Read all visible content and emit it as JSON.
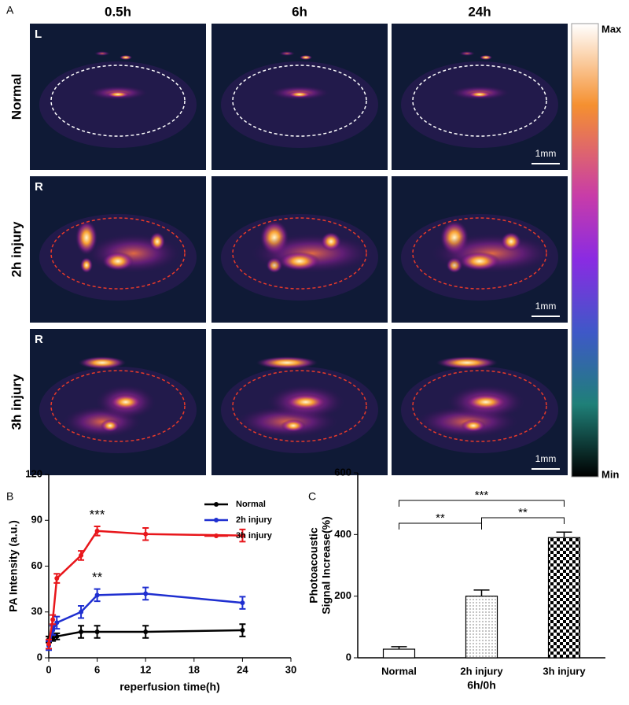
{
  "figure_a": {
    "panel_label": "A",
    "columns": [
      "0.5h",
      "6h",
      "24h"
    ],
    "rows": [
      {
        "label": "Normal",
        "side": "L"
      },
      {
        "label": "2h injury",
        "side": "R"
      },
      {
        "label": "3h injury",
        "side": "R"
      }
    ],
    "scale_bar": "1mm",
    "colorbar": {
      "max": "Max",
      "min": "Min"
    }
  },
  "chart_data": [
    {
      "type": "line",
      "panel_label": "B",
      "xlabel": "reperfusion time(h)",
      "ylabel": "PA Intensity  (a.u.)",
      "x": [
        0,
        0.5,
        1,
        4,
        6,
        12,
        24
      ],
      "series": [
        {
          "name": "Normal",
          "color": "#000000",
          "values": [
            12,
            13,
            14,
            17,
            17,
            17,
            18
          ],
          "errors": [
            2,
            2,
            2,
            4,
            4,
            4,
            4
          ]
        },
        {
          "name": "2h injury",
          "color": "#1f2fd0",
          "values": [
            8,
            18,
            23,
            30,
            41,
            42,
            36
          ],
          "errors": [
            3,
            3,
            4,
            4,
            4,
            4,
            4
          ]
        },
        {
          "name": "3h injury",
          "color": "#e8161b",
          "values": [
            9,
            25,
            52,
            67,
            83,
            81,
            80
          ],
          "errors": [
            3,
            3,
            3,
            3,
            3,
            4,
            4
          ]
        }
      ],
      "annotations": [
        "***",
        "**"
      ],
      "xlim": [
        0,
        30
      ],
      "xticks": [
        0,
        6,
        12,
        18,
        24,
        30
      ],
      "ylim": [
        0,
        120
      ],
      "yticks": [
        0,
        30,
        60,
        90,
        120
      ],
      "legend": "upper right"
    },
    {
      "type": "bar",
      "panel_label": "C",
      "xlabel": "6h/0h",
      "ylabel": [
        "Photoacoustic",
        "Signal Increase(%)"
      ],
      "categories": [
        "Normal",
        "2h injury",
        "3h injury"
      ],
      "values": [
        28,
        200,
        390
      ],
      "errors": [
        8,
        20,
        18
      ],
      "patterns": [
        "none",
        "dots",
        "checker"
      ],
      "annotations": [
        "**",
        "***",
        "**"
      ],
      "ylim": [
        0,
        600
      ],
      "yticks": [
        0,
        200,
        400,
        600
      ]
    }
  ]
}
